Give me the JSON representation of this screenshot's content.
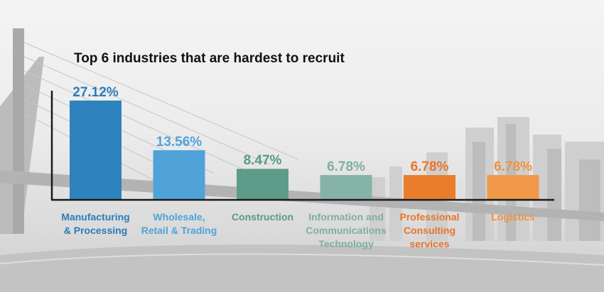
{
  "chart_data": {
    "type": "bar",
    "title": "Top 6 industries that are hardest to recruit",
    "categories": [
      "Manufacturing\n& Processing",
      "Wholesale,\nRetail & Trading",
      "Construction",
      "Information and\nCommunications\nTechnology",
      "Professional\nConsulting\nservices",
      "Logistics"
    ],
    "values": [
      27.12,
      13.56,
      8.47,
      6.78,
      6.78,
      6.78
    ],
    "value_labels": [
      "27.12%",
      "13.56%",
      "8.47%",
      "6.78%",
      "6.78%",
      "6.78%"
    ],
    "colors": [
      "#2e82bd",
      "#4fa3d9",
      "#5e9c8a",
      "#86b3a8",
      "#ea7d2c",
      "#f0994a"
    ],
    "label_colors": [
      "#2a7cb8",
      "#4fa3d9",
      "#5a9a88",
      "#7faea3",
      "#e8742a",
      "#ef9142"
    ],
    "ylim": [
      0,
      30
    ],
    "xlabel": "",
    "ylabel": "",
    "grid": false,
    "legend": "none"
  },
  "background": {
    "icon": "city-bridge-photo"
  }
}
